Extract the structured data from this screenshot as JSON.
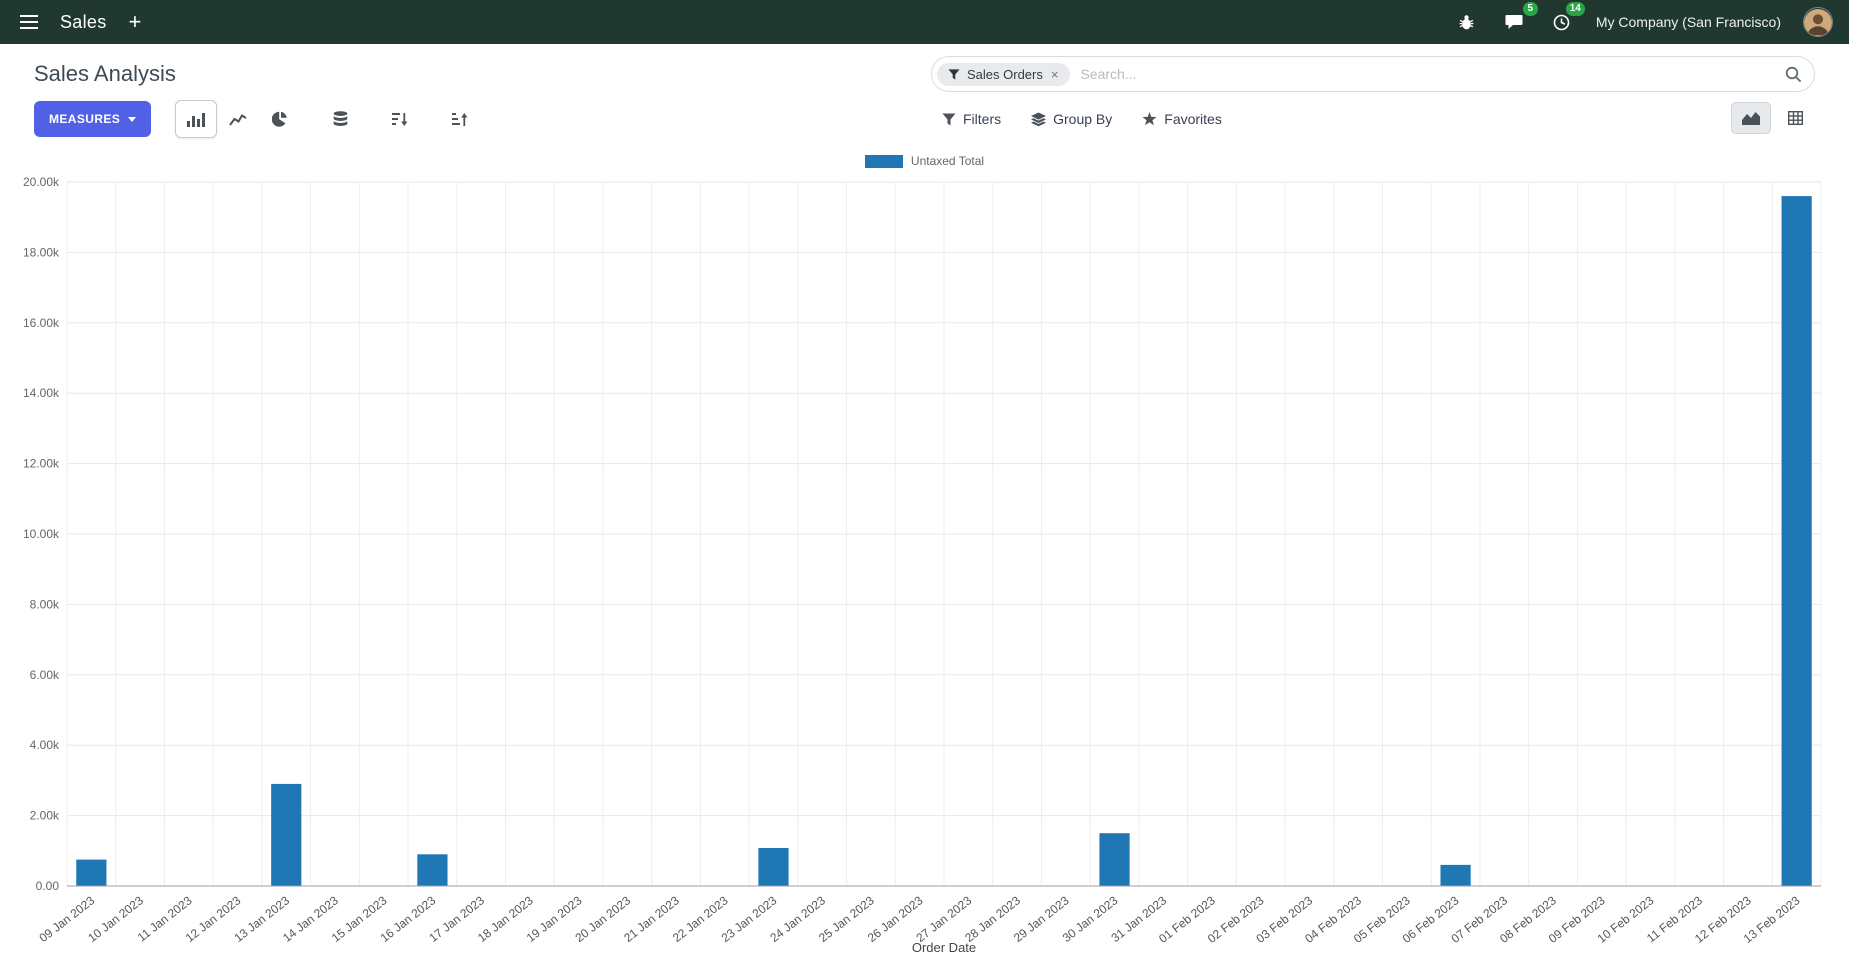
{
  "colors": {
    "navbar_bg": "#20382f",
    "primary": "#5061e5",
    "badge_green": "#28a745",
    "bar": "#1f77b4"
  },
  "navbar": {
    "app_name": "Sales",
    "company": "My Company (San Francisco)",
    "message_badge": "5",
    "activity_badge": "14"
  },
  "control_panel": {
    "title": "Sales Analysis",
    "measures_label": "MEASURES",
    "search": {
      "facet_label": "Sales Orders",
      "facet_remove": "×",
      "placeholder": "Search..."
    },
    "filters_label": "Filters",
    "groupby_label": "Group By",
    "favorites_label": "Favorites"
  },
  "icons": {
    "apps-menu-icon": "hamburger",
    "plus-icon": "+",
    "bug-icon": "bug",
    "messages-icon": "chat-bubble",
    "activities-icon": "clock",
    "filter-icon": "funnel",
    "group-by-icon": "layers",
    "favorites-icon": "star",
    "search-icon": "magnifier",
    "bar-chart-icon": "vertical-bars",
    "line-chart-icon": "polyline",
    "pie-chart-icon": "pie",
    "stacked-icon": "stack",
    "sort-descending-icon": "arrow-down-bars",
    "sort-ascending-icon": "arrow-up-bars",
    "graph-view-icon": "area-chart",
    "pivot-view-icon": "grid"
  },
  "chart_data": {
    "type": "bar",
    "title": "",
    "xlabel": "Order Date",
    "ylabel": "",
    "ylim": [
      0,
      20000
    ],
    "y_tick_step": 2000,
    "y_tick_labels": [
      "0.00",
      "2.00k",
      "4.00k",
      "6.00k",
      "8.00k",
      "10.00k",
      "12.00k",
      "14.00k",
      "16.00k",
      "18.00k",
      "20.00k"
    ],
    "grid": true,
    "legend_position": "top-center",
    "categories": [
      "09 Jan 2023",
      "10 Jan 2023",
      "11 Jan 2023",
      "12 Jan 2023",
      "13 Jan 2023",
      "14 Jan 2023",
      "15 Jan 2023",
      "16 Jan 2023",
      "17 Jan 2023",
      "18 Jan 2023",
      "19 Jan 2023",
      "20 Jan 2023",
      "21 Jan 2023",
      "22 Jan 2023",
      "23 Jan 2023",
      "24 Jan 2023",
      "25 Jan 2023",
      "26 Jan 2023",
      "27 Jan 2023",
      "28 Jan 2023",
      "29 Jan 2023",
      "30 Jan 2023",
      "31 Jan 2023",
      "01 Feb 2023",
      "02 Feb 2023",
      "03 Feb 2023",
      "04 Feb 2023",
      "05 Feb 2023",
      "06 Feb 2023",
      "07 Feb 2023",
      "08 Feb 2023",
      "09 Feb 2023",
      "10 Feb 2023",
      "11 Feb 2023",
      "12 Feb 2023",
      "13 Feb 2023"
    ],
    "series": [
      {
        "name": "Untaxed Total",
        "color": "#1f77b4",
        "values": [
          750,
          0,
          0,
          0,
          2900,
          0,
          0,
          900,
          0,
          0,
          0,
          0,
          0,
          0,
          1080,
          0,
          0,
          0,
          0,
          0,
          0,
          1500,
          0,
          0,
          0,
          0,
          0,
          0,
          600,
          0,
          0,
          0,
          0,
          0,
          0,
          19600
        ]
      }
    ]
  }
}
